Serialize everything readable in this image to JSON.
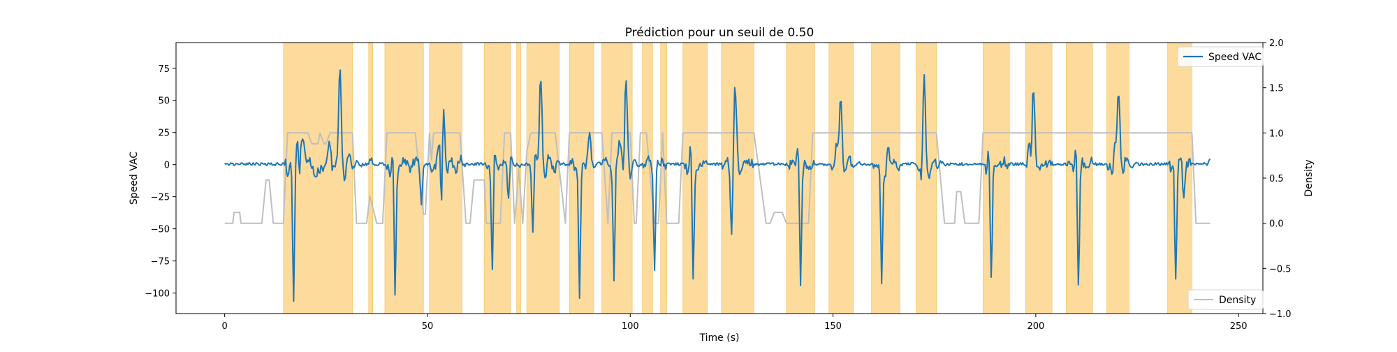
{
  "chart_data": {
    "type": "line",
    "title": "Prédiction pour un seuil de 0.50",
    "xlabel": "Time (s)",
    "ylabel": "Speed VAC",
    "y2label": "Density",
    "xlim": [
      -12,
      256
    ],
    "ylim": [
      -116,
      95
    ],
    "y2lim": [
      -1.0,
      2.0
    ],
    "x_ticks": [
      0,
      50,
      100,
      150,
      200,
      250
    ],
    "y_ticks": [
      75,
      50,
      25,
      0,
      -25,
      -50,
      -75,
      -100
    ],
    "y_tick_labels": [
      "75",
      "50",
      "25",
      "0",
      "−25",
      "−50",
      "−75",
      "−100"
    ],
    "y2_ticks": [
      2.0,
      1.5,
      1.0,
      0.5,
      0.0,
      -0.5,
      -1.0
    ],
    "y2_tick_labels": [
      "2.0",
      "1.5",
      "1.0",
      "0.5",
      "0.0",
      "−0.5",
      "−1.0"
    ],
    "legend_top": {
      "label": "Speed VAC",
      "color": "#1f77b4",
      "placement": "upper right"
    },
    "legend_bottom": {
      "label": "Density",
      "color": "#bfbfbf",
      "placement": "lower right"
    },
    "grid": false,
    "highlight_color": "#fdd998",
    "highlight_spans": [
      [
        14.5,
        31.5
      ],
      [
        35.5,
        36.5
      ],
      [
        39.5,
        49.0
      ],
      [
        50.5,
        58.5
      ],
      [
        64.0,
        70.5
      ],
      [
        72.0,
        73.0
      ],
      [
        74.5,
        82.5
      ],
      [
        85.0,
        91.0
      ],
      [
        93.0,
        100.5
      ],
      [
        103.0,
        105.5
      ],
      [
        107.5,
        109.0
      ],
      [
        113.0,
        119.0
      ],
      [
        122.5,
        130.5
      ],
      [
        138.5,
        145.5
      ],
      [
        149.0,
        155.0
      ],
      [
        159.5,
        166.5
      ],
      [
        170.5,
        175.5
      ],
      [
        187.0,
        193.5
      ],
      [
        197.5,
        204.0
      ],
      [
        207.5,
        214.0
      ],
      [
        217.5,
        223.0
      ],
      [
        232.5,
        238.5
      ]
    ],
    "series": [
      {
        "name": "Speed VAC",
        "axis": "left",
        "color": "#1f77b4",
        "events": [
          [
            15.5,
            2,
            -5,
            18,
            8
          ],
          [
            17.0,
            0,
            -108,
            0,
            0
          ],
          [
            18.5,
            20,
            -25,
            5,
            -10
          ],
          [
            25.5,
            15,
            0,
            0,
            0
          ],
          [
            28.0,
            80,
            -15,
            0,
            0
          ],
          [
            41.0,
            15,
            -15,
            0,
            0
          ],
          [
            42.0,
            0,
            -105,
            0,
            0
          ],
          [
            48.5,
            0,
            -30,
            0,
            0
          ],
          [
            52.5,
            20,
            -5,
            0,
            0
          ],
          [
            53.5,
            64,
            -60,
            0,
            0
          ],
          [
            66.0,
            15,
            -95,
            0,
            0
          ],
          [
            70.0,
            10,
            -30,
            0,
            0
          ],
          [
            76.0,
            15,
            -55,
            0,
            0
          ],
          [
            77.5,
            77,
            -15,
            0,
            0
          ],
          [
            87.5,
            0,
            -102,
            0,
            0
          ],
          [
            89.5,
            25,
            0,
            0,
            0
          ],
          [
            96.0,
            0,
            -90,
            0,
            0
          ],
          [
            97.0,
            20,
            0,
            0,
            0
          ],
          [
            97.5,
            10,
            -5,
            0,
            0
          ],
          [
            98.5,
            76,
            -25,
            0,
            0
          ],
          [
            106.0,
            5,
            -85,
            0,
            0
          ],
          [
            114.5,
            20,
            -10,
            0,
            0
          ],
          [
            115.5,
            0,
            -92,
            0,
            0
          ],
          [
            125.0,
            15,
            -60,
            0,
            0
          ],
          [
            125.5,
            59,
            -10,
            0,
            0
          ],
          [
            141.0,
            20,
            -5,
            0,
            0
          ],
          [
            142.0,
            0,
            -95,
            0,
            0
          ],
          [
            150.5,
            18,
            -10,
            0,
            0
          ],
          [
            151.5,
            62,
            -10,
            0,
            0
          ],
          [
            162.0,
            0,
            -95,
            0,
            0
          ],
          [
            163.0,
            22,
            -15,
            0,
            0
          ],
          [
            172.0,
            76,
            -30,
            0,
            0
          ],
          [
            188.0,
            15,
            -5,
            0,
            0
          ],
          [
            189.0,
            0,
            -95,
            0,
            0
          ],
          [
            198.0,
            20,
            -5,
            0,
            0
          ],
          [
            199.0,
            69,
            -20,
            0,
            0
          ],
          [
            209.5,
            20,
            -10,
            0,
            0
          ],
          [
            210.5,
            0,
            -100,
            0,
            0
          ],
          [
            219.0,
            15,
            -15,
            0,
            0
          ],
          [
            220.0,
            68,
            -10,
            0,
            0
          ],
          [
            233.5,
            10,
            -10,
            0,
            0
          ],
          [
            234.5,
            0,
            -90,
            0,
            0
          ],
          [
            236.5,
            5,
            -30,
            0,
            0
          ]
        ]
      },
      {
        "name": "Density",
        "axis": "right",
        "color": "#bfbfbf",
        "x": [
          0.0,
          2.0,
          2.3,
          3.7,
          4.0,
          9.0,
          10.2,
          10.8,
          12.0,
          14.0,
          15.5,
          20.5,
          21.5,
          23.0,
          23.5,
          24.5,
          26.0,
          31.5,
          32.5,
          35.0,
          35.8,
          37.5,
          38.5,
          40.0,
          47.0,
          49.0,
          50.5,
          51.0,
          51.5,
          58.0,
          59.5,
          60.5,
          61.5,
          64.0,
          64.5,
          69.0,
          70.5,
          71.5,
          72.5,
          73.5,
          74.5,
          75.5,
          81.5,
          84.0,
          85.0,
          93.0,
          94.5,
          95.5,
          100.0,
          101.0,
          102.5,
          104.0,
          106.0,
          108.0,
          109.0,
          113.0,
          119.0,
          122.5,
          130.5,
          133.5,
          134.5,
          135.5,
          136.5,
          138.5,
          145.0,
          148.5,
          155.0,
          159.5,
          166.5,
          170.0,
          175.5,
          177.5,
          178.5,
          180.0,
          180.5,
          181.5,
          182.5,
          187.0,
          193.5,
          197.0,
          203.5,
          207.5,
          214.0,
          217.5,
          223.0,
          232.0,
          238.5,
          239.5,
          243.0
        ],
        "values": [
          0.0,
          0.0,
          0.12,
          0.12,
          0.0,
          0.0,
          0.48,
          0.48,
          0.0,
          0.0,
          1.0,
          1.0,
          0.88,
          0.88,
          1.0,
          0.88,
          1.0,
          1.0,
          0.0,
          0.0,
          0.3,
          0.0,
          0.0,
          1.0,
          1.0,
          0.1,
          1.0,
          0.7,
          1.0,
          1.0,
          0.0,
          0.0,
          0.48,
          0.48,
          0.0,
          1.0,
          1.0,
          0.0,
          0.6,
          0.0,
          0.8,
          1.0,
          1.0,
          0.0,
          1.0,
          1.0,
          0.0,
          1.0,
          1.0,
          0.0,
          1.0,
          1.0,
          0.0,
          1.0,
          0.0,
          1.0,
          1.0,
          1.0,
          1.0,
          0.0,
          0.0,
          0.12,
          0.12,
          0.0,
          1.0,
          1.0,
          1.0,
          1.0,
          1.0,
          1.0,
          1.0,
          0.0,
          0.0,
          0.0,
          0.35,
          0.35,
          0.0,
          1.0,
          1.0,
          1.0,
          1.0,
          1.0,
          1.0,
          1.0,
          1.0,
          1.0,
          1.0,
          0.0,
          0.0
        ],
        "ramp_down": [
          31.5,
          35.8,
          47.0,
          58.0,
          61.5,
          69.0,
          72.5,
          81.5,
          93.0,
          100.0,
          104.0,
          108.0,
          119.0,
          130.5,
          145.0,
          155.0,
          166.5,
          175.5,
          181.5,
          193.5,
          203.5,
          214.0,
          223.0,
          238.5
        ]
      }
    ]
  }
}
